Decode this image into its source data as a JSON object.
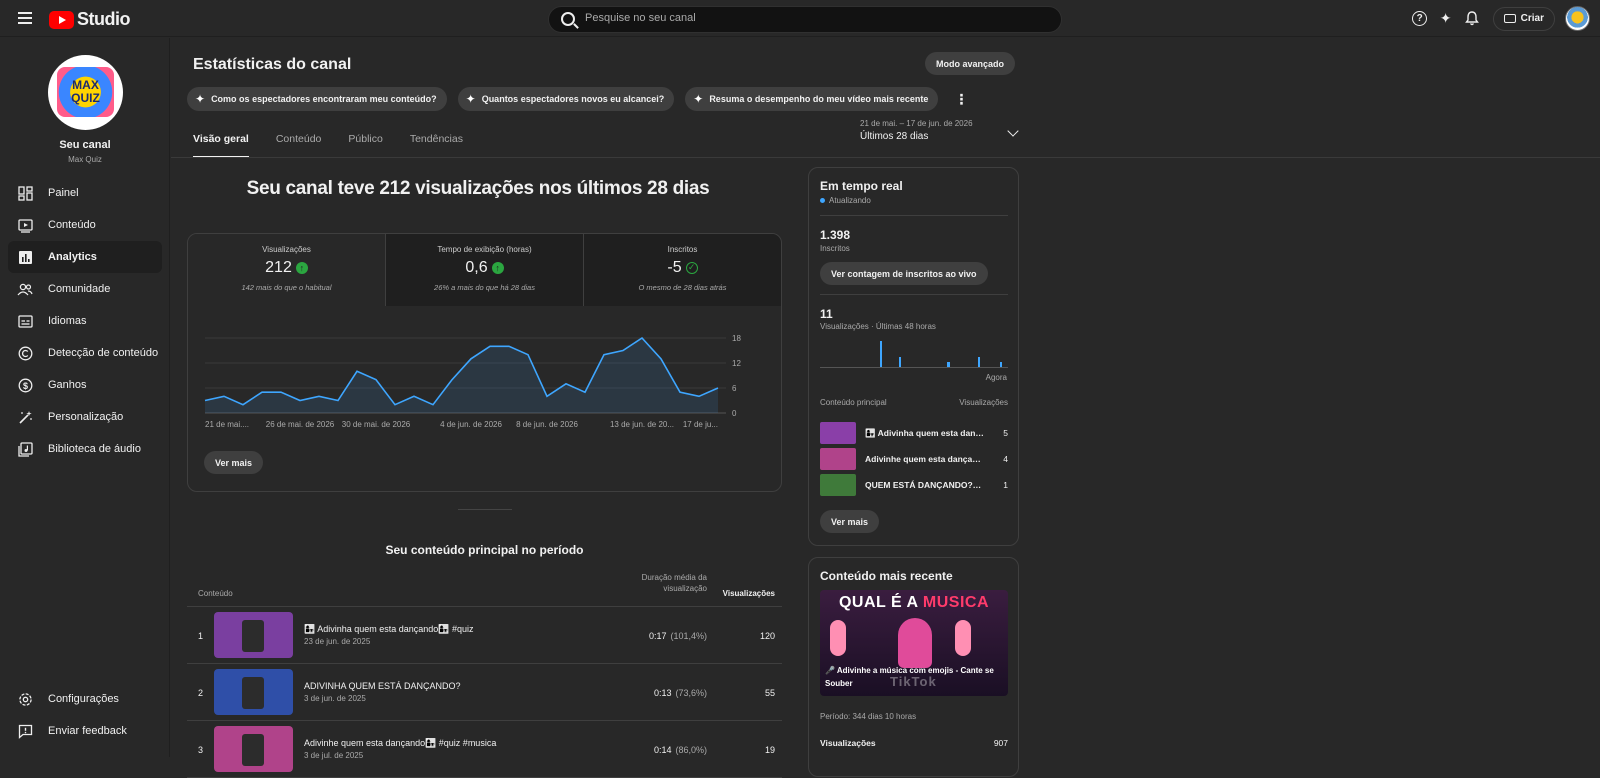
{
  "app": {
    "logo_text": "Studio",
    "search_placeholder": "Pesquise no seu canal",
    "create_label": "Criar"
  },
  "sidebar": {
    "channel_label": "Seu canal",
    "channel_name": "Max Quiz",
    "avatar_text_1": "MAX",
    "avatar_text_2": "QUIZ",
    "items": [
      {
        "label": "Painel",
        "icon": "dashboard-icon"
      },
      {
        "label": "Conteúdo",
        "icon": "content-icon"
      },
      {
        "label": "Analytics",
        "icon": "analytics-icon",
        "active": true
      },
      {
        "label": "Comunidade",
        "icon": "community-icon"
      },
      {
        "label": "Idiomas",
        "icon": "subtitles-icon"
      },
      {
        "label": "Detecção de conteúdo",
        "icon": "copyright-icon"
      },
      {
        "label": "Ganhos",
        "icon": "earn-icon"
      },
      {
        "label": "Personalização",
        "icon": "customization-icon"
      },
      {
        "label": "Biblioteca de áudio",
        "icon": "audio-library-icon"
      }
    ],
    "bottom_items": [
      {
        "label": "Configurações",
        "icon": "settings-icon"
      },
      {
        "label": "Enviar feedback",
        "icon": "feedback-icon"
      }
    ]
  },
  "main": {
    "title": "Estatísticas do canal",
    "advanced_button": "Modo avançado",
    "chips": [
      "Como os espectadores encontraram meu conteúdo?",
      "Quantos espectadores novos eu alcancei?",
      "Resuma o desempenho do meu vídeo mais recente"
    ],
    "tabs": [
      "Visão geral",
      "Conteúdo",
      "Público",
      "Tendências"
    ],
    "date_range": {
      "dates": "21 de mai. – 17 de jun. de 2026",
      "label": "Últimos 28 dias"
    },
    "headline": "Seu canal teve 212 visualizações nos últimos 28 dias",
    "metrics": [
      {
        "label": "Visualizações",
        "value": "212",
        "status": "up",
        "comparison": "142 mais do que o habitual"
      },
      {
        "label": "Tempo de exibição (horas)",
        "value": "0,6",
        "status": "up",
        "comparison": "26% a mais do que há 28 dias"
      },
      {
        "label": "Inscritos",
        "value": "-5",
        "status": "ok",
        "comparison": "O mesmo de 28 dias atrás"
      }
    ],
    "see_more": "Ver mais",
    "top_content": {
      "title": "Seu conteúdo principal no período",
      "col_content": "Conteúdo",
      "col_duration": "Duração média da visualização",
      "col_views": "Visualizações",
      "rows": [
        {
          "rank": "1",
          "title": "👩‍👧 Adivinha quem esta dançando👩‍👧 #quiz",
          "date": "23 de jun. de 2025",
          "duration": "0:17",
          "pct": "(101,4%)",
          "views": "120",
          "color": "#7a3fa0"
        },
        {
          "rank": "2",
          "title": "ADIVINHA QUEM ESTÁ DANÇANDO?",
          "date": "3 de jun. de 2025",
          "duration": "0:13",
          "pct": "(73,6%)",
          "views": "55",
          "color": "#2f4fa8"
        },
        {
          "rank": "3",
          "title": "Adivinhe quem esta dançando👩‍👧 #quiz #musica",
          "date": "3 de jul. de 2025",
          "duration": "0:14",
          "pct": "(86,0%)",
          "views": "19",
          "color": "#b0438a"
        }
      ]
    }
  },
  "chart_data": {
    "type": "area",
    "x": [
      "21 de mai. de 2026",
      "22",
      "23",
      "24",
      "25",
      "26 de mai. de 2026",
      "27",
      "28",
      "29",
      "30 de mai. de 2026",
      "31",
      "1",
      "2",
      "3",
      "4 de jun. de 2026",
      "5",
      "6",
      "7",
      "8 de jun. de 2026",
      "9",
      "10",
      "11",
      "12",
      "13 de jun. de 2026",
      "14",
      "15",
      "16",
      "17 de jun. de 2026"
    ],
    "tick_labels": [
      "21 de mai....",
      "26 de mai. de 2026",
      "30 de mai. de 2026",
      "4 de jun. de 2026",
      "8 de jun. de 2026",
      "13 de jun. de 20...",
      "17 de ju..."
    ],
    "series": [
      {
        "values": [
          3,
          4,
          2,
          5,
          5,
          3,
          4,
          3,
          10,
          8,
          2,
          4,
          2,
          8,
          13,
          16,
          16,
          14,
          4,
          7,
          5,
          14,
          15,
          18,
          13,
          5,
          4,
          6
        ]
      }
    ],
    "y_ticks": [
      0,
      6,
      12,
      18
    ],
    "ylim": [
      0,
      18
    ],
    "grid": true,
    "color": "#3ea6ff"
  },
  "realtime": {
    "title": "Em tempo real",
    "status": "Atualizando",
    "subscribers": "1.398",
    "subscribers_label": "Inscritos",
    "live_button": "Ver contagem de inscritos ao vivo",
    "views": "11",
    "views_label": "Visualizações · Últimas 48 horas",
    "now_label": "Agora",
    "bars": [
      0,
      0,
      0,
      0,
      0,
      0,
      0,
      0,
      0,
      0,
      0,
      0,
      0,
      0,
      0,
      0,
      0,
      0,
      0,
      0,
      0,
      0,
      0,
      0,
      0,
      0,
      0,
      0,
      0,
      0,
      0,
      0,
      0,
      0,
      0,
      0,
      0,
      0,
      0,
      0,
      0,
      0,
      0,
      0,
      0,
      0,
      0,
      5,
      0,
      0,
      0,
      0,
      0,
      0,
      0,
      0,
      0,
      0,
      0,
      0,
      0,
      0,
      2,
      0,
      0,
      0,
      0,
      0,
      0,
      0,
      0,
      0,
      0,
      0,
      0,
      0,
      0,
      0,
      0,
      0,
      0,
      0,
      0,
      0,
      0,
      0,
      0,
      0,
      0,
      0,
      0,
      0,
      0,
      0,
      0,
      0,
      0,
      0,
      0,
      0,
      1,
      1,
      0,
      0,
      0,
      0,
      0,
      0,
      0,
      0,
      0,
      0,
      0,
      0,
      0,
      0,
      0,
      0,
      0,
      0,
      0,
      0,
      0,
      0,
      2,
      0,
      0,
      0,
      0,
      0,
      0,
      0,
      0,
      0,
      0,
      0,
      0,
      0,
      0,
      0,
      0,
      0,
      1,
      0,
      0,
      0,
      0,
      0
    ],
    "col_content": "Conteúdo principal",
    "col_views": "Visualizações",
    "items": [
      {
        "title": "👩‍👧 Adivinha quem esta dançando👩‍👧 #quiz",
        "views": "5",
        "color": "#8a3fa8"
      },
      {
        "title": "Adivinhe quem esta dançando👩‍👧 #quiz #musica",
        "views": "4",
        "color": "#b0438a"
      },
      {
        "title": "QUEM ESTÁ DANÇANDO??? #quiz",
        "views": "1",
        "color": "#3f7a3a"
      }
    ],
    "see_more": "Ver mais"
  },
  "recent": {
    "title": "Conteúdo mais recente",
    "thumb_headline_1": "QUAL É A",
    "thumb_headline_2": "MUSICA",
    "thumb_caption": "🎤 Adivinhe a música com emojis - Cante se Souber",
    "thumb_watermark": "TikTok",
    "period": "Período: 344 dias 10 horas",
    "stat_label": "Visualizações",
    "stat_value": "907"
  }
}
